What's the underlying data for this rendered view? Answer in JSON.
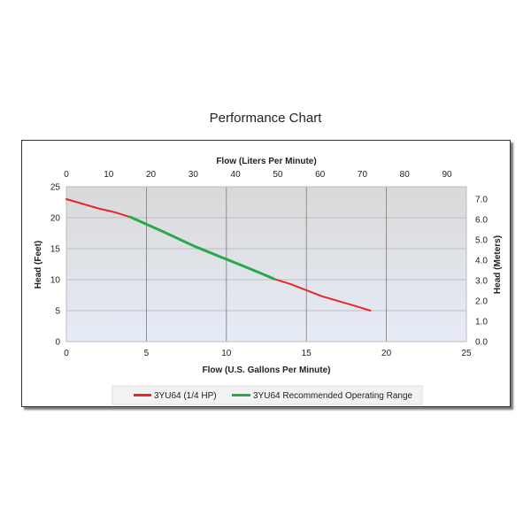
{
  "title": "Performance Chart",
  "chart_data": {
    "type": "line",
    "xlabel": "Flow (U.S. Gallons Per Minute)",
    "x2label": "Flow (Liters Per Minute)",
    "ylabel": "Head (Feet)",
    "y2label": "Head (Meters)",
    "xlim": [
      0,
      25
    ],
    "ylim": [
      0,
      25
    ],
    "x2lim": [
      0,
      94.6
    ],
    "y2lim": [
      0,
      7.62
    ],
    "xticks": [
      "0",
      "5",
      "10",
      "15",
      "20",
      "25"
    ],
    "yticks": [
      "0",
      "5",
      "10",
      "15",
      "20",
      "25"
    ],
    "x2ticks": [
      "0",
      "10",
      "20",
      "30",
      "40",
      "50",
      "60",
      "70",
      "80",
      "90"
    ],
    "y2ticks": [
      "0.0",
      "1.0",
      "2.0",
      "3.0",
      "4.0",
      "5.0",
      "6.0",
      "7.0"
    ],
    "grid": true,
    "legend_position": "bottom",
    "series": [
      {
        "name": "3YU64 (1/4 HP)",
        "color": "#e8262b",
        "x": [
          0,
          2,
          3,
          4,
          6,
          8,
          10,
          12,
          13,
          14,
          16,
          18,
          19
        ],
        "y": [
          23,
          21.5,
          20.9,
          20.1,
          17.8,
          15.4,
          13.3,
          11.2,
          10.1,
          9.3,
          7.3,
          5.8,
          5
        ]
      },
      {
        "name": "3YU64 Recommended Operating Range",
        "color": "#2aa84a",
        "x": [
          4,
          6,
          8,
          10,
          12,
          13
        ],
        "y": [
          20.1,
          17.8,
          15.4,
          13.3,
          11.2,
          10.1
        ]
      }
    ]
  }
}
